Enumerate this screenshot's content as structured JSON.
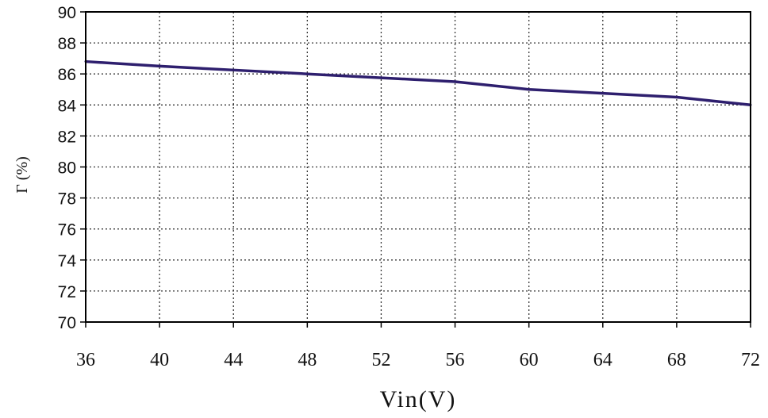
{
  "chart_data": {
    "type": "line",
    "title": "",
    "xlabel": "Vin(V)",
    "ylabel": "Γ (%)",
    "xlim": [
      36,
      72
    ],
    "ylim": [
      70,
      90
    ],
    "xticks": [
      "36",
      "40",
      "44",
      "48",
      "52",
      "56",
      "60",
      "64",
      "68",
      "72"
    ],
    "yticks": [
      "70",
      "72",
      "74",
      "76",
      "78",
      "80",
      "82",
      "84",
      "86",
      "88",
      "90"
    ],
    "grid": "dotted",
    "line_color": "#2e1f6e",
    "series": [
      {
        "x": [
          36,
          40,
          44,
          48,
          52,
          56,
          60,
          64,
          68,
          72
        ],
        "y": [
          86.8,
          86.5,
          86.25,
          86.0,
          85.75,
          85.5,
          85.0,
          84.75,
          84.5,
          84.0
        ]
      }
    ]
  }
}
